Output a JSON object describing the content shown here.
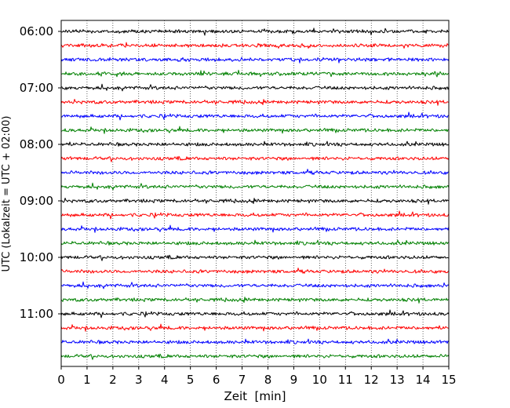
{
  "chart_data": {
    "type": "line",
    "title": "",
    "xlabel": "Zeit  [min]",
    "ylabel": "UTC (Lokalzeit = UTC + 02:00)",
    "xlim": [
      0,
      15
    ],
    "x_ticks": [
      0,
      1,
      2,
      3,
      4,
      5,
      6,
      7,
      8,
      9,
      10,
      11,
      12,
      13,
      14,
      15
    ],
    "y_ticks": [
      "06:00",
      "07:00",
      "08:00",
      "09:00",
      "10:00",
      "11:00"
    ],
    "grid": "vertical dotted",
    "trace_colors": [
      "#000000",
      "#ff0000",
      "#0000ff",
      "#008000"
    ],
    "traces": [
      {
        "start": "06:00",
        "color": "#000000"
      },
      {
        "start": "06:15",
        "color": "#ff0000"
      },
      {
        "start": "06:30",
        "color": "#0000ff"
      },
      {
        "start": "06:45",
        "color": "#008000"
      },
      {
        "start": "07:00",
        "color": "#000000"
      },
      {
        "start": "07:15",
        "color": "#ff0000"
      },
      {
        "start": "07:30",
        "color": "#0000ff"
      },
      {
        "start": "07:45",
        "color": "#008000"
      },
      {
        "start": "08:00",
        "color": "#000000"
      },
      {
        "start": "08:15",
        "color": "#ff0000"
      },
      {
        "start": "08:30",
        "color": "#0000ff"
      },
      {
        "start": "08:45",
        "color": "#008000"
      },
      {
        "start": "09:00",
        "color": "#000000"
      },
      {
        "start": "09:15",
        "color": "#ff0000"
      },
      {
        "start": "09:30",
        "color": "#0000ff"
      },
      {
        "start": "09:45",
        "color": "#008000"
      },
      {
        "start": "10:00",
        "color": "#000000"
      },
      {
        "start": "10:15",
        "color": "#ff0000"
      },
      {
        "start": "10:30",
        "color": "#0000ff"
      },
      {
        "start": "10:45",
        "color": "#008000"
      },
      {
        "start": "11:00",
        "color": "#000000"
      },
      {
        "start": "11:15",
        "color": "#ff0000"
      },
      {
        "start": "11:30",
        "color": "#0000ff"
      },
      {
        "start": "11:45",
        "color": "#008000"
      }
    ]
  }
}
